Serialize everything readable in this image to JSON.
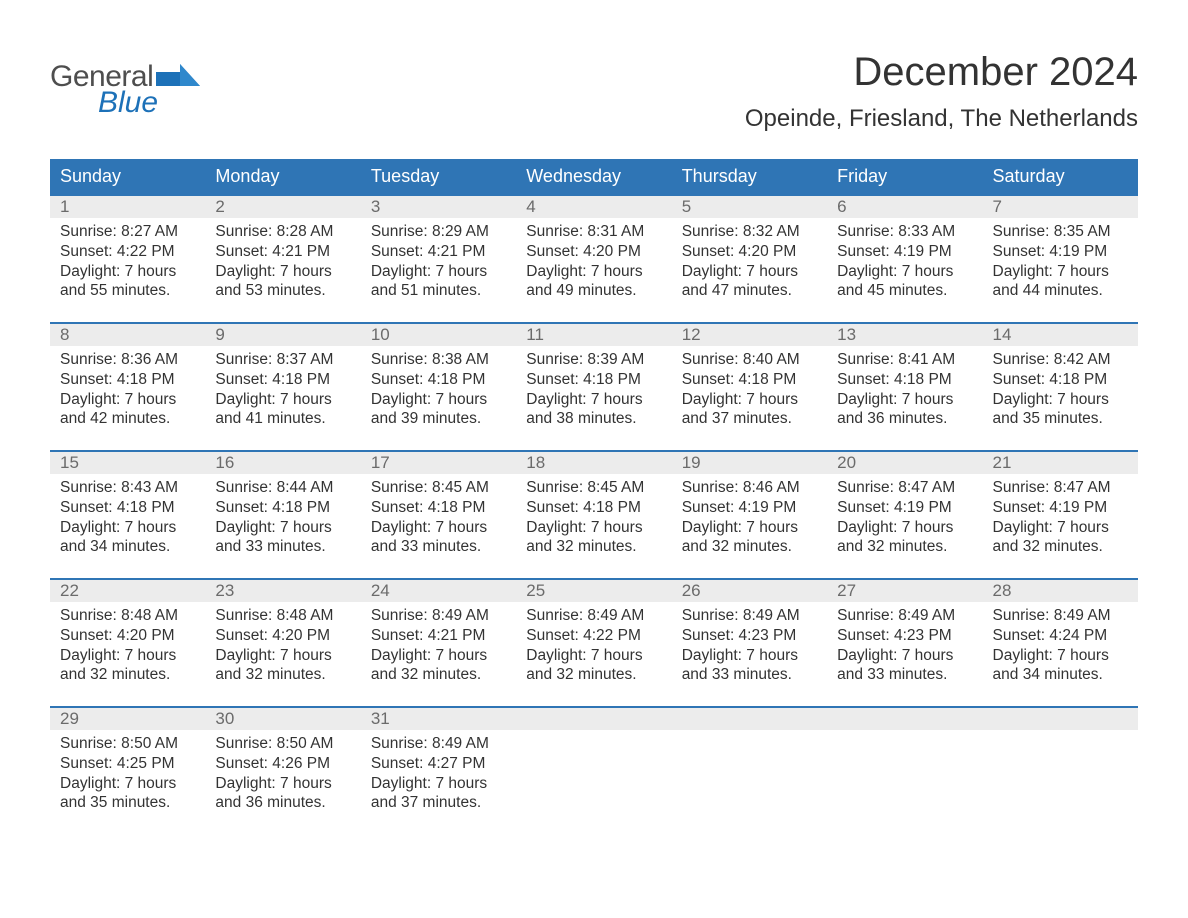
{
  "logo": {
    "text1": "General",
    "text2": "Blue"
  },
  "title": "December 2024",
  "location": "Opeinde, Friesland, The Netherlands",
  "colors": {
    "header_bg": "#2f75b5",
    "header_text": "#ffffff",
    "daynum_bg": "#ececec",
    "daynum_text": "#6b6b6b",
    "body_text": "#333333",
    "logo_gray": "#4e4e4e",
    "logo_blue": "#1d71b8",
    "row_border": "#2f75b5"
  },
  "days_of_week": [
    "Sunday",
    "Monday",
    "Tuesday",
    "Wednesday",
    "Thursday",
    "Friday",
    "Saturday"
  ],
  "weeks": [
    [
      {
        "n": "1",
        "sunrise": "8:27 AM",
        "sunset": "4:22 PM",
        "dl1": "7 hours",
        "dl2": "55 minutes."
      },
      {
        "n": "2",
        "sunrise": "8:28 AM",
        "sunset": "4:21 PM",
        "dl1": "7 hours",
        "dl2": "53 minutes."
      },
      {
        "n": "3",
        "sunrise": "8:29 AM",
        "sunset": "4:21 PM",
        "dl1": "7 hours",
        "dl2": "51 minutes."
      },
      {
        "n": "4",
        "sunrise": "8:31 AM",
        "sunset": "4:20 PM",
        "dl1": "7 hours",
        "dl2": "49 minutes."
      },
      {
        "n": "5",
        "sunrise": "8:32 AM",
        "sunset": "4:20 PM",
        "dl1": "7 hours",
        "dl2": "47 minutes."
      },
      {
        "n": "6",
        "sunrise": "8:33 AM",
        "sunset": "4:19 PM",
        "dl1": "7 hours",
        "dl2": "45 minutes."
      },
      {
        "n": "7",
        "sunrise": "8:35 AM",
        "sunset": "4:19 PM",
        "dl1": "7 hours",
        "dl2": "44 minutes."
      }
    ],
    [
      {
        "n": "8",
        "sunrise": "8:36 AM",
        "sunset": "4:18 PM",
        "dl1": "7 hours",
        "dl2": "42 minutes."
      },
      {
        "n": "9",
        "sunrise": "8:37 AM",
        "sunset": "4:18 PM",
        "dl1": "7 hours",
        "dl2": "41 minutes."
      },
      {
        "n": "10",
        "sunrise": "8:38 AM",
        "sunset": "4:18 PM",
        "dl1": "7 hours",
        "dl2": "39 minutes."
      },
      {
        "n": "11",
        "sunrise": "8:39 AM",
        "sunset": "4:18 PM",
        "dl1": "7 hours",
        "dl2": "38 minutes."
      },
      {
        "n": "12",
        "sunrise": "8:40 AM",
        "sunset": "4:18 PM",
        "dl1": "7 hours",
        "dl2": "37 minutes."
      },
      {
        "n": "13",
        "sunrise": "8:41 AM",
        "sunset": "4:18 PM",
        "dl1": "7 hours",
        "dl2": "36 minutes."
      },
      {
        "n": "14",
        "sunrise": "8:42 AM",
        "sunset": "4:18 PM",
        "dl1": "7 hours",
        "dl2": "35 minutes."
      }
    ],
    [
      {
        "n": "15",
        "sunrise": "8:43 AM",
        "sunset": "4:18 PM",
        "dl1": "7 hours",
        "dl2": "34 minutes."
      },
      {
        "n": "16",
        "sunrise": "8:44 AM",
        "sunset": "4:18 PM",
        "dl1": "7 hours",
        "dl2": "33 minutes."
      },
      {
        "n": "17",
        "sunrise": "8:45 AM",
        "sunset": "4:18 PM",
        "dl1": "7 hours",
        "dl2": "33 minutes."
      },
      {
        "n": "18",
        "sunrise": "8:45 AM",
        "sunset": "4:18 PM",
        "dl1": "7 hours",
        "dl2": "32 minutes."
      },
      {
        "n": "19",
        "sunrise": "8:46 AM",
        "sunset": "4:19 PM",
        "dl1": "7 hours",
        "dl2": "32 minutes."
      },
      {
        "n": "20",
        "sunrise": "8:47 AM",
        "sunset": "4:19 PM",
        "dl1": "7 hours",
        "dl2": "32 minutes."
      },
      {
        "n": "21",
        "sunrise": "8:47 AM",
        "sunset": "4:19 PM",
        "dl1": "7 hours",
        "dl2": "32 minutes."
      }
    ],
    [
      {
        "n": "22",
        "sunrise": "8:48 AM",
        "sunset": "4:20 PM",
        "dl1": "7 hours",
        "dl2": "32 minutes."
      },
      {
        "n": "23",
        "sunrise": "8:48 AM",
        "sunset": "4:20 PM",
        "dl1": "7 hours",
        "dl2": "32 minutes."
      },
      {
        "n": "24",
        "sunrise": "8:49 AM",
        "sunset": "4:21 PM",
        "dl1": "7 hours",
        "dl2": "32 minutes."
      },
      {
        "n": "25",
        "sunrise": "8:49 AM",
        "sunset": "4:22 PM",
        "dl1": "7 hours",
        "dl2": "32 minutes."
      },
      {
        "n": "26",
        "sunrise": "8:49 AM",
        "sunset": "4:23 PM",
        "dl1": "7 hours",
        "dl2": "33 minutes."
      },
      {
        "n": "27",
        "sunrise": "8:49 AM",
        "sunset": "4:23 PM",
        "dl1": "7 hours",
        "dl2": "33 minutes."
      },
      {
        "n": "28",
        "sunrise": "8:49 AM",
        "sunset": "4:24 PM",
        "dl1": "7 hours",
        "dl2": "34 minutes."
      }
    ],
    [
      {
        "n": "29",
        "sunrise": "8:50 AM",
        "sunset": "4:25 PM",
        "dl1": "7 hours",
        "dl2": "35 minutes."
      },
      {
        "n": "30",
        "sunrise": "8:50 AM",
        "sunset": "4:26 PM",
        "dl1": "7 hours",
        "dl2": "36 minutes."
      },
      {
        "n": "31",
        "sunrise": "8:49 AM",
        "sunset": "4:27 PM",
        "dl1": "7 hours",
        "dl2": "37 minutes."
      },
      null,
      null,
      null,
      null
    ]
  ],
  "labels": {
    "sunrise": "Sunrise: ",
    "sunset": "Sunset: ",
    "daylight": "Daylight: ",
    "and": "and "
  }
}
